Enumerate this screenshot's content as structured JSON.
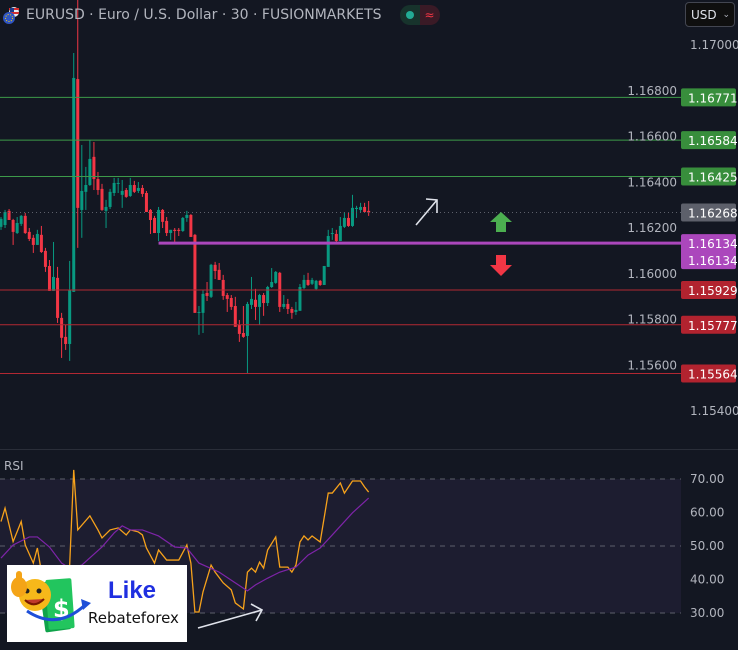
{
  "header": {
    "symbol": "EURUSD",
    "title": "EURUSD · Euro / U.S. Dollar · 30 · FUSIONMARKETS",
    "market_status_icon": "green-dot-icon",
    "data_status_icon": "approx-icon",
    "currency": "USD"
  },
  "colors": {
    "background": "#131722",
    "up": "#089981",
    "down": "#f23645",
    "support_line": "#b22833",
    "resistance_line": "#3d9a4a",
    "pivot_line": "#ab47bc",
    "rsi": "#f7a21b",
    "rsi_ma": "#7e24a8"
  },
  "chart_data": [
    {
      "type": "candlestick",
      "title": "EURUSD · Euro / U.S. Dollar · 30 · FUSIONMARKETS",
      "ylim": [
        1.153,
        1.172
      ],
      "y_ticks": [
        "1.17000",
        "1.16800",
        "1.16600",
        "1.16400",
        "1.16200",
        "1.16000",
        "1.15800",
        "1.15600",
        "1.15400"
      ],
      "last_price": "1.16268",
      "candles_ohlc": [
        [
          1.16205,
          1.16248,
          1.16192,
          1.1624
        ],
        [
          1.16213,
          1.16279,
          1.162,
          1.1627
        ],
        [
          1.16275,
          1.16283,
          1.16235,
          1.16235
        ],
        [
          1.16235,
          1.1624,
          1.16126,
          1.16183
        ],
        [
          1.16178,
          1.16248,
          1.16174,
          1.16222
        ],
        [
          1.16218,
          1.16257,
          1.16209,
          1.16253
        ],
        [
          1.16253,
          1.16266,
          1.16174,
          1.16178
        ],
        [
          1.16183,
          1.162,
          1.16143,
          1.16152
        ],
        [
          1.16157,
          1.1617,
          1.16091,
          1.16126
        ],
        [
          1.16126,
          1.16192,
          1.16126,
          1.16174
        ],
        [
          1.1617,
          1.16209,
          1.16091,
          1.16095
        ],
        [
          1.161,
          1.16113,
          1.16008,
          1.1603
        ],
        [
          1.16034,
          1.1606,
          1.15925,
          1.15925
        ],
        [
          1.15925,
          1.16139,
          1.15925,
          1.15986
        ],
        [
          1.15982,
          1.1603,
          1.15785,
          1.15807
        ],
        [
          1.15807,
          1.15829,
          1.15632,
          1.1572
        ],
        [
          1.15724,
          1.15776,
          1.15667,
          1.15693
        ],
        [
          1.15693,
          1.16056,
          1.15619,
          1.15929
        ],
        [
          1.15921,
          1.16965,
          1.15921,
          1.16856
        ],
        [
          1.16851,
          1.17197,
          1.16113,
          1.16288
        ],
        [
          1.16279,
          1.16563,
          1.16157,
          1.16362
        ],
        [
          1.16358,
          1.16467,
          1.16279,
          1.16388
        ],
        [
          1.16388,
          1.16585,
          1.16384,
          1.16502
        ],
        [
          1.16511,
          1.16576,
          1.16366,
          1.16414
        ],
        [
          1.16414,
          1.16445,
          1.16345,
          1.16366
        ],
        [
          1.16371,
          1.16393,
          1.16275,
          1.16279
        ],
        [
          1.16275,
          1.16323,
          1.162,
          1.16292
        ],
        [
          1.16292,
          1.16371,
          1.16283,
          1.16358
        ],
        [
          1.16353,
          1.16419,
          1.1634,
          1.16397
        ],
        [
          1.16393,
          1.16419,
          1.16353,
          1.16397
        ],
        [
          1.16345,
          1.1641,
          1.16288,
          1.16362
        ],
        [
          1.16366,
          1.16375,
          1.16332,
          1.16336
        ],
        [
          1.1634,
          1.16419,
          1.16336,
          1.16388
        ],
        [
          1.16388,
          1.16406,
          1.16353,
          1.16358
        ],
        [
          1.16362,
          1.16401,
          1.16353,
          1.16375
        ],
        [
          1.16375,
          1.16388,
          1.16336,
          1.16349
        ],
        [
          1.16353,
          1.16362,
          1.1627,
          1.1627
        ],
        [
          1.16279,
          1.16283,
          1.16174,
          1.16235
        ],
        [
          1.16244,
          1.16253,
          1.16178,
          1.16178
        ],
        [
          1.16178,
          1.16292,
          1.16143,
          1.16279
        ],
        [
          1.16279,
          1.16283,
          1.162,
          1.16227
        ],
        [
          1.16231,
          1.16248,
          1.16165,
          1.16178
        ],
        [
          1.16178,
          1.16192,
          1.16148,
          1.16192
        ],
        [
          1.16192,
          1.162,
          1.16139,
          1.16187
        ],
        [
          1.16192,
          1.162,
          1.16165,
          1.16187
        ],
        [
          1.16187,
          1.16248,
          1.16183,
          1.16244
        ],
        [
          1.16244,
          1.16275,
          1.16227,
          1.16257
        ],
        [
          1.16257,
          1.16261,
          1.16161,
          1.16161
        ],
        [
          1.1617,
          1.16174,
          1.15829,
          1.15829
        ],
        [
          1.15829,
          1.15859,
          1.15733,
          1.15833
        ],
        [
          1.15829,
          1.15929,
          1.15741,
          1.15912
        ],
        [
          1.15916,
          1.15964,
          1.15881,
          1.15903
        ],
        [
          1.15899,
          1.16043,
          1.15894,
          1.16039
        ],
        [
          1.16039,
          1.16052,
          1.15977,
          1.16012
        ],
        [
          1.16017,
          1.16047,
          1.15973,
          1.15973
        ],
        [
          1.15973,
          1.15995,
          1.15886,
          1.15903
        ],
        [
          1.15907,
          1.15916,
          1.15833,
          1.1589
        ],
        [
          1.15894,
          1.15907,
          1.15842,
          1.15855
        ],
        [
          1.15859,
          1.15899,
          1.15768,
          1.15768
        ],
        [
          1.15776,
          1.15798,
          1.15702,
          1.15737
        ],
        [
          1.15741,
          1.15859,
          1.1572,
          1.15724
        ],
        [
          1.15728,
          1.15877,
          1.15566,
          1.15868
        ],
        [
          1.15864,
          1.15986,
          1.15846,
          1.1589
        ],
        [
          1.15886,
          1.15934,
          1.15798,
          1.15855
        ],
        [
          1.15855,
          1.15912,
          1.15776,
          1.15907
        ],
        [
          1.15907,
          1.15916,
          1.15816,
          1.15872
        ],
        [
          1.15872,
          1.15947,
          1.15859,
          1.15942
        ],
        [
          1.15942,
          1.16025,
          1.15938,
          1.15964
        ],
        [
          1.1596,
          1.16012,
          1.15956,
          1.16008
        ],
        [
          1.16004,
          1.16008,
          1.15833,
          1.15855
        ],
        [
          1.15855,
          1.15907,
          1.15846,
          1.15868
        ],
        [
          1.15868,
          1.1589,
          1.15824,
          1.15846
        ],
        [
          1.15846,
          1.15855,
          1.15803,
          1.15829
        ],
        [
          1.15833,
          1.15877,
          1.1582,
          1.15842
        ],
        [
          1.15838,
          1.15955,
          1.15838,
          1.15942
        ],
        [
          1.15938,
          1.15995,
          1.15933,
          1.15973
        ],
        [
          1.15973,
          1.16004,
          1.15947,
          1.15951
        ],
        [
          1.15956,
          1.15982,
          1.15951,
          1.15973
        ],
        [
          1.15934,
          1.15973,
          1.1593,
          1.15969
        ],
        [
          1.15969,
          1.15973,
          1.15947,
          1.15951
        ],
        [
          1.15951,
          1.16034,
          1.15951,
          1.16034
        ],
        [
          1.1603,
          1.16192,
          1.1603,
          1.16165
        ],
        [
          1.16174,
          1.162,
          1.16148,
          1.16178
        ],
        [
          1.16174,
          1.16192,
          1.16139,
          1.16143
        ],
        [
          1.16143,
          1.16248,
          1.16143,
          1.16209
        ],
        [
          1.16205,
          1.1627,
          1.162,
          1.16244
        ],
        [
          1.16244,
          1.16266,
          1.16205,
          1.16209
        ],
        [
          1.16209,
          1.16345,
          1.16205,
          1.16288
        ],
        [
          1.16283,
          1.16297,
          1.16244,
          1.16288
        ],
        [
          1.16279,
          1.1631,
          1.1627,
          1.16292
        ],
        [
          1.16292,
          1.1631,
          1.16266,
          1.1627
        ],
        [
          1.16275,
          1.16318,
          1.16253,
          1.16268
        ]
      ],
      "horizontal_levels": [
        {
          "price": 1.16771,
          "label": "1.16771",
          "kind": "resistance"
        },
        {
          "price": 1.16584,
          "label": "1.16584",
          "kind": "resistance"
        },
        {
          "price": 1.16425,
          "label": "1.16425",
          "kind": "resistance"
        },
        {
          "price": 1.15929,
          "label": "1.15929",
          "kind": "support"
        },
        {
          "price": 1.15777,
          "label": "1.15777",
          "kind": "support"
        },
        {
          "price": 1.15564,
          "label": "1.15564",
          "kind": "support"
        }
      ],
      "pivot_level": {
        "price": 1.16134,
        "label": "1.16134",
        "label2": "1.16134",
        "start_bar": 39
      },
      "annotations": [
        "arrow-up-right-icon",
        "green-up-arrow-icon",
        "red-down-arrow-icon"
      ]
    },
    {
      "type": "line",
      "title": "RSI",
      "ylim": [
        20,
        75
      ],
      "y_ticks": [
        "70.00",
        "60.00",
        "50.00",
        "40.00",
        "30.00"
      ],
      "band": [
        30,
        70
      ],
      "series": [
        {
          "role": "rsi",
          "points": [
            [
              0,
              57.3
            ],
            [
              1,
              61.3
            ],
            [
              3,
              51.3
            ],
            [
              4,
              54.3
            ],
            [
              5,
              57.3
            ],
            [
              6,
              50.3
            ],
            [
              8,
              44.9
            ],
            [
              9,
              49.4
            ],
            [
              10,
              42.3
            ],
            [
              12,
              40
            ],
            [
              15,
              38
            ],
            [
              16,
              36
            ],
            [
              17,
              44.3
            ],
            [
              18,
              72.7
            ],
            [
              19,
              54.8
            ],
            [
              22,
              59
            ],
            [
              24,
              54.8
            ],
            [
              25,
              52.4
            ],
            [
              27,
              54.8
            ],
            [
              29,
              55.4
            ],
            [
              31,
              53.3
            ],
            [
              32,
              54.8
            ],
            [
              34,
              54.2
            ],
            [
              35,
              53.3
            ],
            [
              36,
              49.4
            ],
            [
              38,
              44.9
            ],
            [
              39,
              48.8
            ],
            [
              41,
              45.8
            ],
            [
              44,
              45.8
            ],
            [
              46,
              50.3
            ],
            [
              47,
              44.9
            ],
            [
              48,
              30.3
            ],
            [
              49,
              30.3
            ],
            [
              50,
              36.3
            ],
            [
              52,
              44.3
            ],
            [
              53,
              42.2
            ],
            [
              55,
              39
            ],
            [
              57,
              36.9
            ],
            [
              58,
              33
            ],
            [
              60,
              31.2
            ],
            [
              61,
              42.2
            ],
            [
              62,
              43.4
            ],
            [
              63,
              42.2
            ],
            [
              64,
              45.2
            ],
            [
              65,
              43.4
            ],
            [
              66,
              48.8
            ],
            [
              68,
              52.7
            ],
            [
              69,
              43.7
            ],
            [
              71,
              43.7
            ],
            [
              72,
              42.2
            ],
            [
              73,
              44.3
            ],
            [
              74,
              51.2
            ],
            [
              75,
              53
            ],
            [
              76,
              51.8
            ],
            [
              77,
              53
            ],
            [
              79,
              51.2
            ],
            [
              81,
              65.8
            ],
            [
              82,
              65.8
            ],
            [
              84,
              68.8
            ],
            [
              85,
              65.8
            ],
            [
              87,
              69.4
            ],
            [
              89,
              69.4
            ],
            [
              90,
              67.6
            ],
            [
              91,
              66.1
            ]
          ]
        },
        {
          "role": "rsi_ma",
          "points": [
            [
              0,
              46.4
            ],
            [
              3,
              50.3
            ],
            [
              7,
              52.7
            ],
            [
              9,
              52.7
            ],
            [
              12,
              49.7
            ],
            [
              15,
              44.9
            ],
            [
              17,
              43.4
            ],
            [
              20,
              44.3
            ],
            [
              25,
              49.7
            ],
            [
              28,
              53.9
            ],
            [
              30,
              56
            ],
            [
              32,
              54.8
            ],
            [
              35,
              54.8
            ],
            [
              39,
              53
            ],
            [
              43,
              49.7
            ],
            [
              46,
              49.4
            ],
            [
              49,
              44.9
            ],
            [
              54,
              42.2
            ],
            [
              58,
              39
            ],
            [
              61,
              36.6
            ],
            [
              63,
              38.4
            ],
            [
              66,
              40.4
            ],
            [
              69,
              42.2
            ],
            [
              73,
              43.7
            ],
            [
              76,
              47.3
            ],
            [
              79,
              49.4
            ],
            [
              82,
              53.3
            ],
            [
              87,
              59.9
            ],
            [
              91,
              64.3
            ]
          ]
        }
      ]
    }
  ],
  "logo": {
    "line1": "Like",
    "line2": "Rebateforex"
  }
}
